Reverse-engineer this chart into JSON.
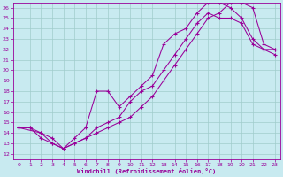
{
  "xlabel": "Windchill (Refroidissement éolien,°C)",
  "bg_color": "#c8eaf0",
  "grid_color": "#a0cccc",
  "line_color": "#990099",
  "xlim": [
    -0.5,
    23.5
  ],
  "ylim": [
    11.5,
    26.5
  ],
  "yticks": [
    12,
    13,
    14,
    15,
    16,
    17,
    18,
    19,
    20,
    21,
    22,
    23,
    24,
    25,
    26
  ],
  "xticks": [
    0,
    1,
    2,
    3,
    4,
    5,
    6,
    7,
    8,
    9,
    10,
    11,
    12,
    13,
    14,
    15,
    16,
    17,
    18,
    19,
    20,
    21,
    22,
    23
  ],
  "line1_x": [
    0,
    1,
    2,
    3,
    4,
    5,
    6,
    7,
    8,
    9,
    10,
    11,
    12,
    13,
    14,
    15,
    16,
    17,
    18,
    19,
    20,
    21,
    22,
    23
  ],
  "line1_y": [
    14.5,
    14.5,
    13.5,
    13.0,
    12.5,
    13.0,
    13.5,
    14.0,
    14.5,
    15.0,
    15.5,
    16.5,
    17.5,
    19.0,
    20.5,
    22.0,
    23.5,
    25.0,
    25.5,
    26.5,
    26.5,
    26.0,
    22.5,
    22.0
  ],
  "line2_x": [
    0,
    2,
    3,
    4,
    5,
    6,
    7,
    8,
    9,
    10,
    11,
    12,
    13,
    14,
    15,
    16,
    17,
    18,
    19,
    20,
    21,
    22,
    23
  ],
  "line2_y": [
    14.5,
    14.0,
    13.5,
    12.5,
    13.5,
    14.5,
    18.0,
    18.0,
    16.5,
    17.5,
    18.5,
    19.5,
    22.5,
    23.5,
    24.0,
    25.5,
    26.5,
    26.5,
    26.0,
    25.0,
    23.0,
    22.0,
    22.0
  ],
  "line3_x": [
    0,
    1,
    2,
    3,
    4,
    5,
    6,
    7,
    8,
    9,
    10,
    11,
    12,
    13,
    14,
    15,
    16,
    17,
    18,
    19,
    20,
    21,
    22,
    23
  ],
  "line3_y": [
    14.5,
    14.5,
    14.0,
    13.0,
    12.5,
    13.0,
    13.5,
    14.5,
    15.0,
    15.5,
    17.0,
    18.0,
    18.5,
    20.0,
    21.5,
    23.0,
    24.5,
    25.5,
    25.0,
    25.0,
    24.5,
    22.5,
    22.0,
    21.5
  ]
}
